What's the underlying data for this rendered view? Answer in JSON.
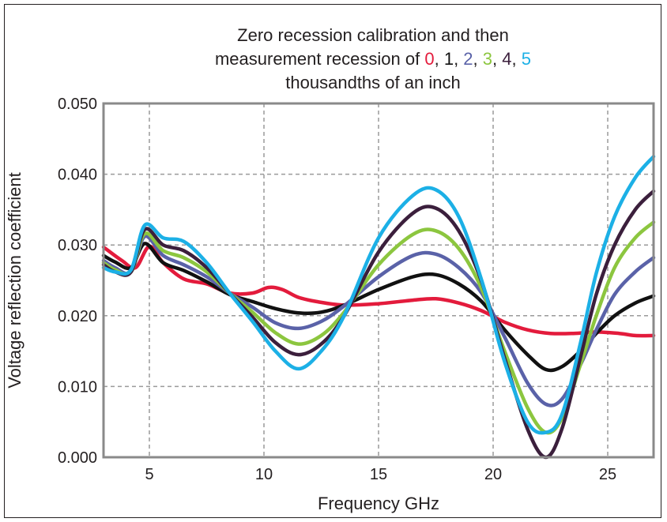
{
  "chart_data": {
    "type": "line",
    "title_lines": {
      "line1": "Zero recession calibration and then",
      "line2_prefix": "measurement recession of ",
      "recession_values": [
        "0",
        "1",
        "2",
        "3",
        "4",
        "5"
      ],
      "line3": "thousandths of an inch"
    },
    "xlabel": "Frequency GHz",
    "ylabel": "Voltage reflection coefficient",
    "xlim": [
      3,
      27
    ],
    "ylim": [
      0,
      0.05
    ],
    "xticks": [
      "5",
      "10",
      "15",
      "20",
      "25"
    ],
    "yticks": [
      "0.000",
      "0.010",
      "0.020",
      "0.030",
      "0.040",
      "0.050"
    ],
    "grid": true,
    "legend": "colored numbers in title",
    "series": [
      {
        "name": "0",
        "color": "#e31b3c",
        "x": [
          3.0,
          3.8,
          4.4,
          5.0,
          5.6,
          6.5,
          7.5,
          8.5,
          9.5,
          10.2,
          10.8,
          11.5,
          12.3,
          13.5,
          15.0,
          16.5,
          17.5,
          18.5,
          19.5,
          20.5,
          21.5,
          22.5,
          23.5,
          24.5,
          25.5,
          26.2,
          27.0
        ],
        "y": [
          0.0297,
          0.0278,
          0.0268,
          0.0298,
          0.0275,
          0.0252,
          0.0245,
          0.0232,
          0.0232,
          0.024,
          0.0237,
          0.0226,
          0.022,
          0.0215,
          0.0217,
          0.0222,
          0.0224,
          0.0218,
          0.0207,
          0.0191,
          0.018,
          0.0175,
          0.0175,
          0.0177,
          0.0175,
          0.0172,
          0.0172
        ]
      },
      {
        "name": "1",
        "color": "#111111",
        "x": [
          3.0,
          3.5,
          4.2,
          4.8,
          5.6,
          6.5,
          7.5,
          8.5,
          9.5,
          10.5,
          11.5,
          12.5,
          13.5,
          15.0,
          16.5,
          17.5,
          18.5,
          19.5,
          20.5,
          21.5,
          22.3,
          23.0,
          23.8,
          24.5,
          25.3,
          26.2,
          27.0
        ],
        "y": [
          0.0285,
          0.0276,
          0.0268,
          0.0302,
          0.0275,
          0.0264,
          0.0248,
          0.023,
          0.022,
          0.021,
          0.0204,
          0.0205,
          0.0215,
          0.0237,
          0.0255,
          0.0258,
          0.0245,
          0.022,
          0.018,
          0.0145,
          0.0124,
          0.0128,
          0.015,
          0.0175,
          0.02,
          0.0218,
          0.0228
        ]
      },
      {
        "name": "2",
        "color": "#5a62a8",
        "x": [
          3.0,
          3.5,
          4.2,
          4.8,
          5.6,
          6.5,
          7.5,
          8.5,
          9.5,
          10.5,
          11.5,
          12.5,
          13.5,
          15.0,
          16.5,
          17.5,
          18.5,
          19.5,
          20.5,
          21.5,
          22.3,
          23.0,
          23.8,
          24.5,
          25.3,
          26.2,
          27.0
        ],
        "y": [
          0.0278,
          0.0268,
          0.0262,
          0.0312,
          0.0285,
          0.0272,
          0.0255,
          0.0232,
          0.0212,
          0.019,
          0.0182,
          0.0192,
          0.0214,
          0.0255,
          0.0285,
          0.0287,
          0.0268,
          0.0232,
          0.017,
          0.0105,
          0.0075,
          0.0082,
          0.013,
          0.018,
          0.023,
          0.0262,
          0.0282
        ]
      },
      {
        "name": "3",
        "color": "#8cc63f",
        "x": [
          3.0,
          3.5,
          4.2,
          4.8,
          5.6,
          6.5,
          7.5,
          8.5,
          9.5,
          10.5,
          11.5,
          12.5,
          13.5,
          15.0,
          16.5,
          17.5,
          18.5,
          19.5,
          20.5,
          21.5,
          22.3,
          23.0,
          23.8,
          24.5,
          25.3,
          26.2,
          27.0
        ],
        "y": [
          0.0275,
          0.0265,
          0.0262,
          0.0316,
          0.0292,
          0.0282,
          0.0262,
          0.0232,
          0.0205,
          0.0176,
          0.016,
          0.0172,
          0.0205,
          0.0272,
          0.0315,
          0.032,
          0.0295,
          0.0238,
          0.015,
          0.007,
          0.0035,
          0.0055,
          0.013,
          0.02,
          0.0268,
          0.031,
          0.0332
        ]
      },
      {
        "name": "4",
        "color": "#3b1f3c",
        "x": [
          3.0,
          3.5,
          4.2,
          4.8,
          5.6,
          6.5,
          7.5,
          8.5,
          9.5,
          10.5,
          11.5,
          12.5,
          13.5,
          15.0,
          16.5,
          17.5,
          18.5,
          19.5,
          20.5,
          21.5,
          22.3,
          23.0,
          23.8,
          24.5,
          25.3,
          26.2,
          27.0
        ],
        "y": [
          0.0272,
          0.0262,
          0.0262,
          0.0322,
          0.03,
          0.0292,
          0.0268,
          0.0232,
          0.0198,
          0.0162,
          0.0145,
          0.016,
          0.02,
          0.029,
          0.0345,
          0.0352,
          0.032,
          0.0248,
          0.014,
          0.004,
          0.0,
          0.004,
          0.014,
          0.023,
          0.03,
          0.035,
          0.0376
        ]
      },
      {
        "name": "5",
        "color": "#1cb0e6",
        "x": [
          3.0,
          3.5,
          4.2,
          4.8,
          5.6,
          6.5,
          7.5,
          8.5,
          9.5,
          10.5,
          11.5,
          12.5,
          13.5,
          15.0,
          16.5,
          17.5,
          18.5,
          19.5,
          20.5,
          21.5,
          22.3,
          23.0,
          23.8,
          24.5,
          25.3,
          26.2,
          27.0
        ],
        "y": [
          0.0268,
          0.0262,
          0.0265,
          0.0328,
          0.031,
          0.0305,
          0.0275,
          0.0232,
          0.0192,
          0.015,
          0.0125,
          0.015,
          0.02,
          0.031,
          0.037,
          0.0378,
          0.034,
          0.025,
          0.0135,
          0.005,
          0.0035,
          0.006,
          0.016,
          0.026,
          0.034,
          0.0395,
          0.0425
        ]
      }
    ]
  }
}
